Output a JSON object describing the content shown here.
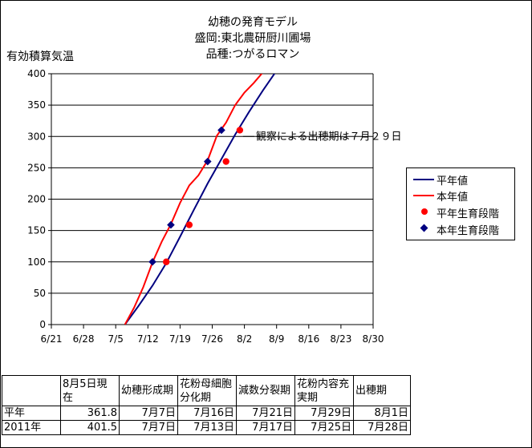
{
  "title_lines": [
    "幼穂の発育モデル",
    "盛岡:東北農研厨川圃場",
    "品種:つがるロマン"
  ],
  "colors": {
    "heiren_line": "#000080",
    "honnen_line": "#ff0000",
    "heiren_stage": "#ff0000",
    "honnen_stage": "#000080"
  },
  "chart_data": {
    "type": "line",
    "title": "幼穂の発育モデル 盛岡:東北農研厨川圃場 品種:つがるロマン",
    "ylabel": "有効積算気温",
    "xlabel": "",
    "x_ticks": [
      "6/21",
      "6/28",
      "7/5",
      "7/12",
      "7/19",
      "7/26",
      "8/2",
      "8/9",
      "8/16",
      "8/23",
      "8/30"
    ],
    "y_ticks": [
      "0",
      "50",
      "100",
      "150",
      "200",
      "250",
      "300",
      "350",
      "400"
    ],
    "xlim": [
      "6/21",
      "8/30"
    ],
    "ylim": [
      0,
      400
    ],
    "grid": "horizontal",
    "legend_position": "right",
    "series": [
      {
        "name": "平年値",
        "kind": "line",
        "color": "#000080",
        "x": [
          "7/7",
          "7/10",
          "7/13",
          "7/16",
          "7/19",
          "7/22",
          "7/25",
          "7/28",
          "7/31",
          "8/3",
          "8/6",
          "8/9"
        ],
        "y": [
          0,
          30,
          62,
          98,
          140,
          183,
          225,
          264,
          303,
          339,
          373,
          405
        ]
      },
      {
        "name": "本年値",
        "kind": "line",
        "color": "#ff0000",
        "x": [
          "7/7",
          "7/9",
          "7/11",
          "7/13",
          "7/15",
          "7/17",
          "7/19",
          "7/21",
          "7/23",
          "7/25",
          "7/27",
          "7/29",
          "7/31",
          "8/2",
          "8/4",
          "8/6"
        ],
        "y": [
          0,
          27,
          60,
          99,
          132,
          160,
          194,
          222,
          238,
          262,
          301,
          322,
          350,
          370,
          385,
          402
        ]
      },
      {
        "name": "平年生育段階",
        "kind": "marker",
        "marker": "circle",
        "color": "#ff0000",
        "x": [
          "7/16",
          "7/21",
          "7/29",
          "8/1"
        ],
        "y": [
          100,
          159,
          260,
          310
        ]
      },
      {
        "name": "本年生育段階",
        "kind": "marker",
        "marker": "diamond",
        "color": "#000080",
        "x": [
          "7/13",
          "7/17",
          "7/25",
          "7/28"
        ],
        "y": [
          100,
          159,
          260,
          310
        ]
      }
    ],
    "annotation": {
      "text": "観察による出穂期は７月２９日",
      "x": "8/1",
      "y": 300
    }
  },
  "table": {
    "headers": [
      "",
      "8月5日現在",
      "幼穂形成期",
      "花粉母細胞分化期",
      "減数分裂期",
      "花粉内容充実期",
      "出穂期"
    ],
    "rows": [
      {
        "label": "平年",
        "values": [
          "361.8",
          "7月7日",
          "7月16日",
          "7月21日",
          "7月29日",
          "8月1日"
        ]
      },
      {
        "label": "2011年",
        "values": [
          "401.5",
          "7月7日",
          "7月13日",
          "7月17日",
          "7月25日",
          "7月28日"
        ]
      }
    ]
  }
}
